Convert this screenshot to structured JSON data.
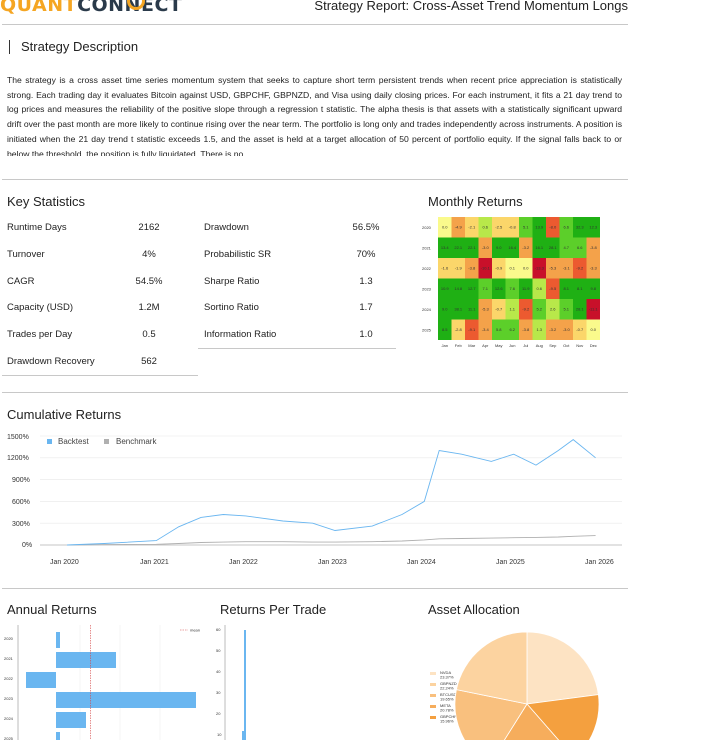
{
  "header": {
    "logo_text_a": "QUANT",
    "logo_text_b": "CONNECT",
    "report_title": "Strategy Report: Cross-Asset Trend Momentum Longs"
  },
  "description": {
    "title": "Strategy Description",
    "text": "The strategy is a cross asset time series momentum system that seeks to capture short term persistent trends when recent price appreciation is statistically strong. Each trading day it evaluates Bitcoin against USD, GBPCHF, GBPNZD, and Visa using daily closing prices. For each instrument, it fits a 21 day trend to log prices and measures the reliability of the positive slope through a regression t statistic. The alpha thesis is that assets with a statistically significant upward drift over the past month are more likely to continue rising over the near term. The portfolio is long only and trades independently across instruments. A position is initiated when the 21 day trend t statistic exceeds 1.5, and the asset is held at a target allocation of 50 percent of portfolio equity. If the signal falls back to or below the threshold, the position is fully liquidated. There is no"
  },
  "key_statistics": {
    "title": "Key Statistics",
    "left": [
      {
        "label": "Runtime Days",
        "value": "2162"
      },
      {
        "label": "Turnover",
        "value": "4%"
      },
      {
        "label": "CAGR",
        "value": "54.5%"
      },
      {
        "label": "Capacity (USD)",
        "value": "1.2M"
      },
      {
        "label": "Trades per Day",
        "value": "0.5"
      },
      {
        "label": "Drawdown Recovery",
        "value": "562"
      }
    ],
    "right": [
      {
        "label": "Drawdown",
        "value": "56.5%"
      },
      {
        "label": "Probabilistic SR",
        "value": "70%"
      },
      {
        "label": "Sharpe Ratio",
        "value": "1.3"
      },
      {
        "label": "Sortino Ratio",
        "value": "1.7"
      },
      {
        "label": "Information Ratio",
        "value": "1.0"
      }
    ]
  },
  "monthly_returns": {
    "title": "Monthly Returns",
    "years": [
      "2020",
      "2021",
      "2022",
      "2023",
      "2024",
      "2025"
    ],
    "months": [
      "Jan",
      "Feb",
      "Mar",
      "Apr",
      "May",
      "Jun",
      "Jul",
      "Aug",
      "Sep",
      "Oct",
      "Nov",
      "Dec"
    ],
    "values": [
      [
        0.0,
        -4.9,
        -2.1,
        0.6,
        -2.5,
        -0.8,
        5.1,
        13.9,
        -8.0,
        6.6,
        32.3,
        12.3
      ],
      [
        13.4,
        22.1,
        22.1,
        -3.0,
        9.0,
        16.4,
        -3.2,
        16.1,
        28.1,
        4.7,
        6.6,
        -3.8
      ],
      [
        -1.6,
        -1.9,
        -3.8,
        -10.1,
        -0.9,
        0.1,
        -0.0,
        -13.3,
        -5.3,
        -3.1,
        -9.2,
        -3.3
      ],
      [
        10.9,
        14.8,
        12.7,
        7.1,
        12.6,
        7.6,
        11.9,
        0.6,
        -9.5,
        8.1,
        8.1,
        9.8
      ],
      [
        9.0,
        38.1,
        11.1,
        -5.3,
        -0.7,
        1.1,
        -9.2,
        5.2,
        2.6,
        5.1,
        28.1,
        -11.1
      ],
      [
        8.5,
        -2.8,
        -9.1,
        -3.4,
        5.8,
        6.2,
        -3.8,
        1.3,
        -3.2,
        -3.0,
        -0.7,
        0.0
      ]
    ]
  },
  "cumulative_returns": {
    "title": "Cumulative Returns",
    "legend_backtest": "Backtest",
    "legend_benchmark": "Benchmark",
    "y_ticks": [
      "1500%",
      "1200%",
      "900%",
      "600%",
      "300%",
      "0%"
    ],
    "x_ticks": [
      "Jan 2020",
      "Jan 2021",
      "Jan 2022",
      "Jan 2023",
      "Jan 2024",
      "Jan 2025",
      "Jan 2026"
    ]
  },
  "chart_data": [
    {
      "type": "line",
      "title": "Cumulative Returns",
      "ylim": [
        0,
        1500
      ],
      "x": [
        "2020-01",
        "2020-06",
        "2021-01",
        "2021-04",
        "2021-07",
        "2021-10",
        "2022-01",
        "2022-06",
        "2022-10",
        "2023-01",
        "2023-06",
        "2023-10",
        "2024-01",
        "2024-03",
        "2024-06",
        "2024-10",
        "2025-01",
        "2025-04",
        "2025-07",
        "2025-09",
        "2025-12"
      ],
      "series": [
        {
          "name": "Backtest",
          "values": [
            0,
            20,
            60,
            250,
            380,
            420,
            400,
            330,
            300,
            200,
            260,
            420,
            600,
            1300,
            1250,
            1150,
            1250,
            1100,
            1300,
            1450,
            1200
          ]
        },
        {
          "name": "Benchmark",
          "values": [
            0,
            5,
            10,
            20,
            35,
            40,
            45,
            45,
            40,
            40,
            45,
            55,
            70,
            85,
            90,
            95,
            100,
            105,
            110,
            120,
            130
          ]
        }
      ]
    }
  ],
  "annual_returns": {
    "title": "Annual Returns",
    "legend_mean": "mean",
    "years": [
      "2020",
      "2021",
      "2022",
      "2023",
      "2024",
      "2025"
    ],
    "values": [
      8,
      120,
      -60,
      280,
      60,
      8
    ]
  },
  "returns_per_trade": {
    "title": "Returns Per Trade",
    "y_ticks": [
      "60",
      "50",
      "40",
      "30",
      "20",
      "10"
    ]
  },
  "asset_allocation": {
    "title": "Asset Allocation",
    "items": [
      {
        "label": "NVDA",
        "pct": "23.37%"
      },
      {
        "label": "GBPNZD",
        "pct": "22.24%"
      },
      {
        "label": "BTCUSD",
        "pct": "19.65%"
      },
      {
        "label": "META",
        "pct": "20.78%"
      },
      {
        "label": "GBPCHF",
        "pct": "15.96%"
      }
    ]
  }
}
